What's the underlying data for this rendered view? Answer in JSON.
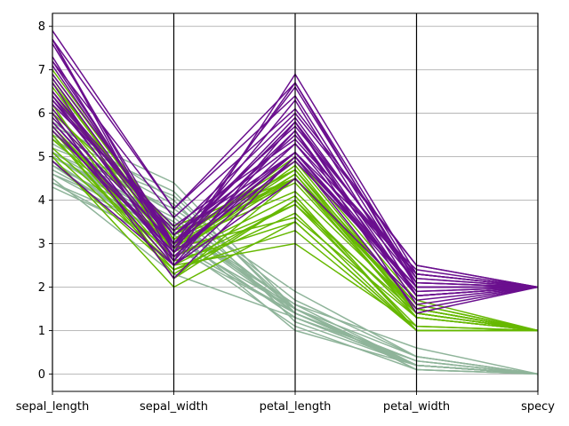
{
  "chart_data": {
    "type": "parallel_coordinates",
    "axes": [
      "sepal_length",
      "sepal_width",
      "petal_length",
      "petal_width",
      "specy"
    ],
    "ylim": [
      -0.4,
      8.3
    ],
    "yticks": [
      "0",
      "1",
      "2",
      "3",
      "4",
      "5",
      "6",
      "7",
      "8"
    ],
    "grid": true,
    "legend": "none",
    "series": [
      {
        "color": "#8fb49a",
        "rows": [
          [
            5.1,
            3.5,
            1.4,
            0.2,
            0
          ],
          [
            4.9,
            3.0,
            1.4,
            0.2,
            0
          ],
          [
            4.7,
            3.2,
            1.3,
            0.2,
            0
          ],
          [
            4.6,
            3.1,
            1.5,
            0.2,
            0
          ],
          [
            5.0,
            3.6,
            1.4,
            0.2,
            0
          ],
          [
            5.4,
            3.9,
            1.7,
            0.4,
            0
          ],
          [
            4.6,
            3.4,
            1.4,
            0.3,
            0
          ],
          [
            5.0,
            3.4,
            1.5,
            0.2,
            0
          ],
          [
            4.4,
            2.9,
            1.4,
            0.2,
            0
          ],
          [
            4.9,
            3.1,
            1.5,
            0.1,
            0
          ],
          [
            5.4,
            3.7,
            1.5,
            0.2,
            0
          ],
          [
            4.8,
            3.4,
            1.6,
            0.2,
            0
          ],
          [
            4.3,
            3.0,
            1.1,
            0.1,
            0
          ],
          [
            5.8,
            4.0,
            1.2,
            0.2,
            0
          ],
          [
            5.7,
            4.4,
            1.5,
            0.4,
            0
          ],
          [
            5.1,
            3.8,
            1.9,
            0.4,
            0
          ],
          [
            5.0,
            3.3,
            1.0,
            0.2,
            0
          ],
          [
            4.5,
            2.3,
            1.3,
            0.3,
            0
          ],
          [
            5.2,
            4.1,
            1.5,
            0.1,
            0
          ],
          [
            5.0,
            3.5,
            1.6,
            0.6,
            0
          ],
          [
            4.8,
            3.0,
            1.4,
            0.3,
            0
          ],
          [
            5.3,
            3.7,
            1.5,
            0.2,
            0
          ],
          [
            5.5,
            4.2,
            1.4,
            0.2,
            0
          ],
          [
            4.4,
            3.2,
            1.3,
            0.2,
            0
          ]
        ]
      },
      {
        "color": "#66b800",
        "rows": [
          [
            7.0,
            3.2,
            4.7,
            1.4,
            1
          ],
          [
            6.4,
            3.2,
            4.5,
            1.5,
            1
          ],
          [
            6.9,
            3.1,
            4.9,
            1.5,
            1
          ],
          [
            5.5,
            2.3,
            4.0,
            1.3,
            1
          ],
          [
            6.5,
            2.8,
            4.6,
            1.5,
            1
          ],
          [
            5.7,
            2.8,
            4.5,
            1.3,
            1
          ],
          [
            6.3,
            3.3,
            4.7,
            1.6,
            1
          ],
          [
            4.9,
            2.4,
            3.3,
            1.0,
            1
          ],
          [
            6.6,
            2.9,
            4.6,
            1.3,
            1
          ],
          [
            5.2,
            2.7,
            3.9,
            1.4,
            1
          ],
          [
            5.0,
            2.0,
            3.5,
            1.0,
            1
          ],
          [
            5.9,
            3.0,
            4.2,
            1.5,
            1
          ],
          [
            6.0,
            2.2,
            4.0,
            1.0,
            1
          ],
          [
            6.1,
            2.9,
            4.7,
            1.4,
            1
          ],
          [
            5.6,
            2.9,
            3.6,
            1.3,
            1
          ],
          [
            6.7,
            3.1,
            4.4,
            1.4,
            1
          ],
          [
            5.1,
            2.5,
            3.0,
            1.1,
            1
          ],
          [
            5.7,
            2.6,
            3.5,
            1.0,
            1
          ],
          [
            5.5,
            2.4,
            3.7,
            1.0,
            1
          ],
          [
            5.8,
            2.7,
            4.1,
            1.0,
            1
          ],
          [
            6.2,
            2.2,
            4.5,
            1.5,
            1
          ],
          [
            5.6,
            2.5,
            3.9,
            1.1,
            1
          ],
          [
            6.8,
            2.8,
            4.8,
            1.4,
            1
          ],
          [
            6.7,
            3.0,
            5.0,
            1.7,
            1
          ],
          [
            6.0,
            3.4,
            4.5,
            1.6,
            1
          ],
          [
            5.4,
            3.0,
            4.5,
            1.5,
            1
          ]
        ]
      },
      {
        "color": "#6a0f8e",
        "rows": [
          [
            6.3,
            3.3,
            6.0,
            2.5,
            2
          ],
          [
            5.8,
            2.7,
            5.1,
            1.9,
            2
          ],
          [
            7.1,
            3.0,
            5.9,
            2.1,
            2
          ],
          [
            6.3,
            2.9,
            5.6,
            1.8,
            2
          ],
          [
            6.5,
            3.0,
            5.8,
            2.2,
            2
          ],
          [
            7.6,
            3.0,
            6.6,
            2.1,
            2
          ],
          [
            4.9,
            2.5,
            4.5,
            1.7,
            2
          ],
          [
            7.3,
            2.9,
            6.3,
            1.8,
            2
          ],
          [
            6.7,
            2.5,
            5.8,
            1.8,
            2
          ],
          [
            7.2,
            3.6,
            6.1,
            2.5,
            2
          ],
          [
            6.5,
            3.2,
            5.1,
            2.0,
            2
          ],
          [
            6.4,
            2.7,
            5.3,
            1.9,
            2
          ],
          [
            6.8,
            3.0,
            5.5,
            2.1,
            2
          ],
          [
            5.7,
            2.5,
            5.0,
            2.0,
            2
          ],
          [
            5.8,
            2.8,
            5.1,
            2.4,
            2
          ],
          [
            6.4,
            3.2,
            5.3,
            2.3,
            2
          ],
          [
            7.7,
            3.8,
            6.7,
            2.2,
            2
          ],
          [
            7.7,
            2.6,
            6.9,
            2.3,
            2
          ],
          [
            6.0,
            2.2,
            5.0,
            1.5,
            2
          ],
          [
            6.9,
            3.2,
            5.7,
            2.3,
            2
          ],
          [
            5.6,
            2.8,
            4.9,
            2.0,
            2
          ],
          [
            7.7,
            2.8,
            6.7,
            2.0,
            2
          ],
          [
            7.9,
            3.8,
            6.4,
            2.0,
            2
          ],
          [
            6.1,
            2.6,
            5.6,
            1.4,
            2
          ],
          [
            7.2,
            3.0,
            5.8,
            1.6,
            2
          ],
          [
            6.2,
            3.4,
            5.4,
            2.3,
            2
          ],
          [
            5.9,
            3.0,
            5.1,
            1.8,
            2
          ]
        ]
      }
    ]
  }
}
